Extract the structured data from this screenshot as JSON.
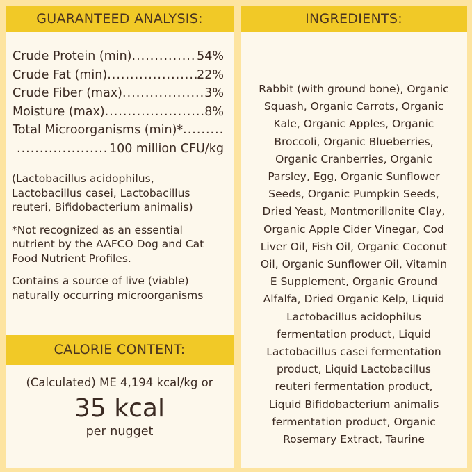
{
  "analysis": {
    "title": "GUARANTEED ANALYSIS:",
    "rows": [
      {
        "label": "Crude Protein (min)",
        "value": "54%"
      },
      {
        "label": "Crude Fat (min)",
        "value": "22%"
      },
      {
        "label": "Crude Fiber (max)",
        "value": "3%"
      },
      {
        "label": "Moisture (max)",
        "value": "8%"
      },
      {
        "label": "Total Microorganisms (min)*",
        "value": ""
      },
      {
        "label": "",
        "value": "100 million CFU/kg"
      }
    ],
    "notes": [
      [
        "(Lactobacillus acidophilus,",
        "Lactobacillus casei, Lactobacillus",
        "reuteri, Bifidobacterium animalis)"
      ],
      [
        "*Not recognized as an essential",
        "nutrient by the AAFCO Dog and Cat",
        "Food Nutrient Profiles."
      ],
      [
        "Contains a source of live (viable)",
        "naturally occurring microorganisms"
      ]
    ]
  },
  "calorie": {
    "title": "CALORIE CONTENT:",
    "line1": "(Calculated) ME 4,194 kcal/kg or",
    "big": "35 kcal",
    "line3": "per nugget"
  },
  "ingredients": {
    "title": "INGREDIENTS:",
    "lines": [
      "Rabbit (with ground bone), Organic",
      "Squash, Organic Carrots, Organic",
      "Kale, Organic Apples, Organic",
      "Broccoli, Organic Blueberries,",
      "Organic Cranberries, Organic",
      "Parsley, Egg, Organic Sunflower",
      "Seeds, Organic Pumpkin Seeds,",
      "Dried Yeast, Montmorillonite Clay,",
      "Organic Apple Cider Vinegar, Cod",
      "Liver Oil, Fish Oil, Organic Coconut",
      "Oil, Organic Sunflower Oil, Vitamin",
      "E Supplement, Organic Ground",
      "Alfalfa, Dried Organic Kelp, Liquid",
      "Lactobacillus acidophilus",
      "fermentation product, Liquid",
      "Lactobacillus casei fermentation",
      "product, Liquid Lactobacillus",
      "reuteri fermentation product,",
      "Liquid Bifidobacterium animalis",
      "fermentation product, Organic",
      "Rosemary Extract, Taurine"
    ]
  },
  "colors": {
    "background": "#fde4a0",
    "header": "#f1c927",
    "panel": "#fdf8ec",
    "text": "#3b2a22"
  }
}
